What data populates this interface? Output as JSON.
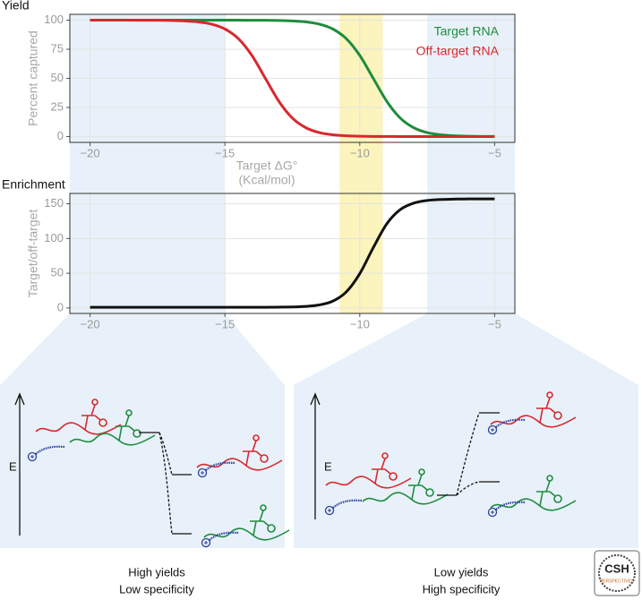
{
  "chart_data": [
    {
      "type": "line",
      "title": "Yield",
      "y_label": "Percent captured",
      "x_label": "Target ΔG°",
      "x_label_unit": "(Kcal/mol)",
      "x": [
        -20,
        -19.5,
        -19,
        -18.5,
        -18,
        -17.5,
        -17,
        -16.5,
        -16,
        -15.5,
        -15,
        -14.5,
        -14,
        -13.5,
        -13,
        -12.5,
        -12,
        -11.5,
        -11,
        -10.5,
        -10,
        -9.5,
        -9,
        -8.5,
        -8,
        -7.5,
        -7,
        -6.5,
        -6,
        -5.5,
        -5
      ],
      "series": [
        {
          "name": "Target RNA",
          "color": "#1e8c3e",
          "values": [
            100,
            100,
            100,
            100,
            100,
            100,
            100,
            100,
            100,
            100,
            100,
            100,
            99.9,
            99.9,
            99.7,
            99.3,
            98.5,
            96.6,
            92.4,
            84.1,
            69.7,
            50,
            30.3,
            15.9,
            7.6,
            3.4,
            1.5,
            0.7,
            0.3,
            0.1,
            0.1
          ]
        },
        {
          "name": "Off-target RNA",
          "color": "#d8282f",
          "values": [
            100,
            100,
            100,
            100,
            99.9,
            99.9,
            99.7,
            99.3,
            98.5,
            96.6,
            92.4,
            84.1,
            69.7,
            50,
            30.3,
            15.9,
            7.6,
            3.4,
            1.5,
            0.7,
            0.3,
            0.1,
            0.1,
            0,
            0,
            0,
            0,
            0,
            0,
            0,
            0
          ]
        }
      ],
      "xlim": [
        -20.75,
        -4.25
      ],
      "xticks": [
        {
          "value": -20,
          "label": "−20"
        },
        {
          "value": -15,
          "label": "−15"
        },
        {
          "value": -10,
          "label": "−10"
        },
        {
          "value": -5,
          "label": "−5"
        }
      ],
      "ylim": [
        -5,
        105
      ],
      "yticks": [
        0,
        25,
        50,
        75,
        100
      ],
      "grid": true,
      "legend": "top-right"
    },
    {
      "type": "line",
      "title": "Enrichment",
      "y_label": "Target/off-target",
      "x": [
        -20,
        -19.5,
        -19,
        -18.5,
        -18,
        -17.5,
        -17,
        -16.5,
        -16,
        -15.5,
        -15,
        -14.5,
        -14,
        -13.5,
        -13,
        -12.5,
        -12,
        -11.5,
        -11,
        -10.5,
        -10,
        -9.5,
        -9,
        -8.5,
        -8,
        -7.5,
        -7,
        -6.5,
        -6,
        -5.5,
        -5
      ],
      "series": [
        {
          "color": "#111111",
          "values": [
            1,
            1,
            1,
            1,
            1,
            1,
            1,
            1,
            1,
            1,
            1,
            1,
            1,
            1,
            1.2,
            1.5,
            2.3,
            4.4,
            9.9,
            23.1,
            49.4,
            86.8,
            121,
            141.5,
            150.9,
            154.7,
            156.1,
            156.7,
            156.9,
            157,
            157
          ]
        }
      ],
      "xlim": [
        -20.75,
        -4.25
      ],
      "xticks": [
        {
          "value": -20,
          "label": "−20"
        },
        {
          "value": -15,
          "label": "−15"
        },
        {
          "value": -10,
          "label": "−10"
        },
        {
          "value": -5,
          "label": "−5"
        }
      ],
      "ylim": [
        -7.85,
        164.85
      ],
      "yticks": [
        0,
        50,
        100,
        150
      ],
      "grid": true
    }
  ],
  "highlights": [
    {
      "from": -20.75,
      "to": -15,
      "color": "#e8f1f9"
    },
    {
      "from": -10.75,
      "to": -9.15,
      "color": "#fbf4bd"
    },
    {
      "from": -7.5,
      "to": -4.25,
      "color": "#e8f1f9"
    }
  ],
  "panels": [
    {
      "axis_label": "E",
      "caption": [
        "High yields",
        "Low specificity"
      ]
    },
    {
      "axis_label": "E",
      "caption": [
        "Low yields",
        "High specificity"
      ]
    }
  ],
  "logo": {
    "text": "CSH",
    "subtext": "PERSPECTIVES"
  }
}
